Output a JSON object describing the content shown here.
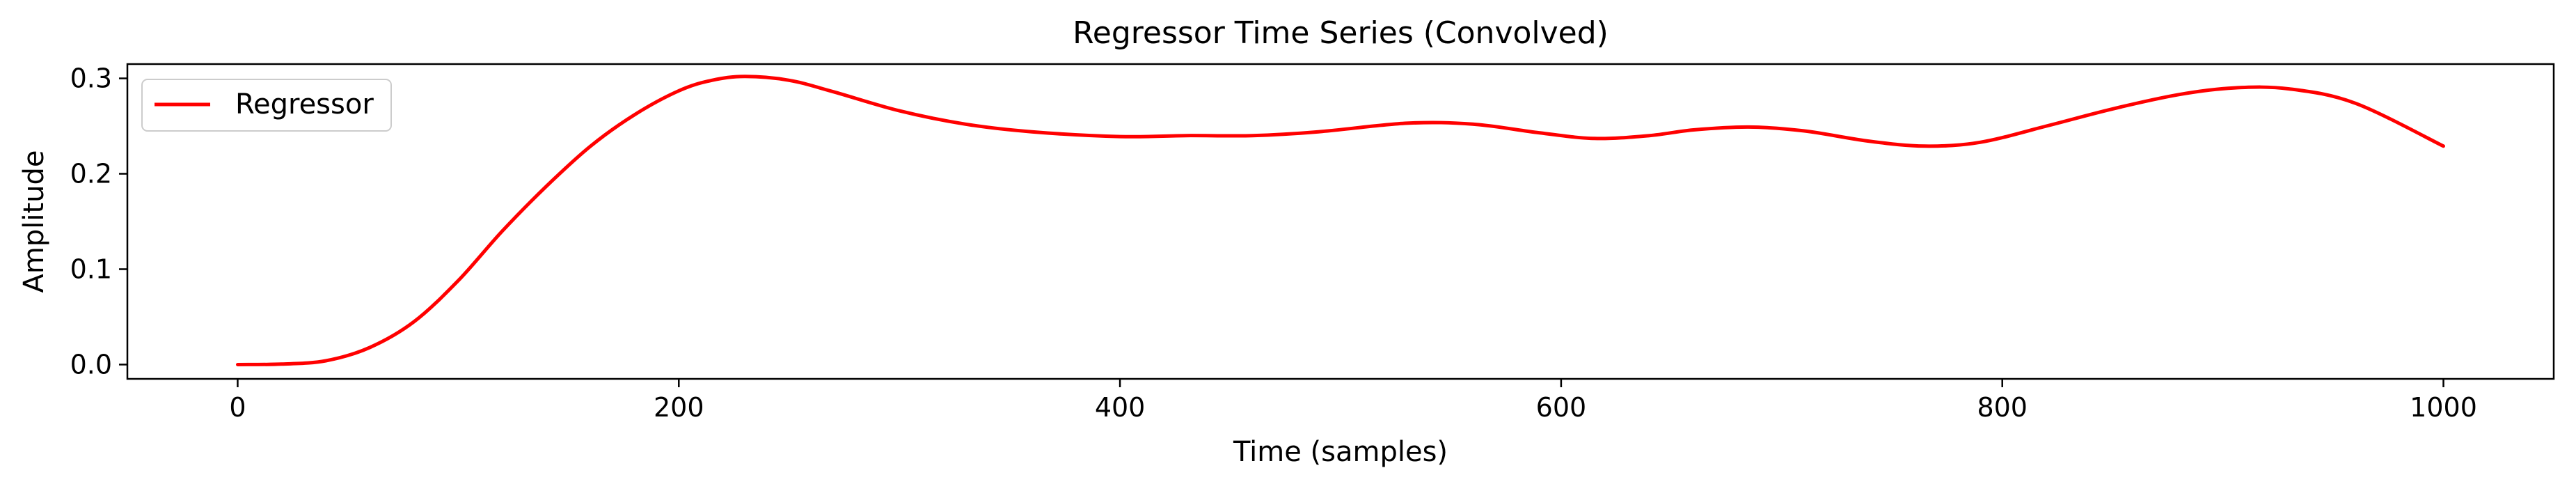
{
  "chart_data": {
    "type": "line",
    "title": "Regressor Time Series (Convolved)",
    "xlabel": "Time (samples)",
    "ylabel": "Amplitude",
    "xlim": [
      -50,
      1050
    ],
    "ylim": [
      -0.015,
      0.315
    ],
    "xticks": [
      0,
      200,
      400,
      600,
      800,
      1000
    ],
    "xtick_labels": [
      "0",
      "200",
      "400",
      "600",
      "800",
      "1000"
    ],
    "yticks": [
      0.0,
      0.1,
      0.2,
      0.3
    ],
    "ytick_labels": [
      "0.0",
      "0.1",
      "0.2",
      "0.3"
    ],
    "grid": false,
    "legend": {
      "position": "top-left"
    },
    "series": [
      {
        "name": "Regressor",
        "color": "#ff0000",
        "x": [
          0,
          20,
          40,
          60,
          80,
          100,
          120,
          140,
          160,
          180,
          200,
          215,
          230,
          250,
          270,
          300,
          330,
          360,
          400,
          430,
          460,
          490,
          530,
          560,
          590,
          615,
          640,
          660,
          685,
          710,
          740,
          765,
          790,
          820,
          850,
          880,
          905,
          930,
          960,
          1000
        ],
        "y": [
          0.0,
          0.0005,
          0.004,
          0.018,
          0.045,
          0.088,
          0.14,
          0.187,
          0.229,
          0.262,
          0.287,
          0.298,
          0.302,
          0.298,
          0.286,
          0.266,
          0.252,
          0.244,
          0.239,
          0.24,
          0.24,
          0.244,
          0.253,
          0.252,
          0.243,
          0.237,
          0.24,
          0.246,
          0.249,
          0.245,
          0.234,
          0.229,
          0.233,
          0.25,
          0.268,
          0.283,
          0.29,
          0.289,
          0.274,
          0.229
        ]
      }
    ]
  }
}
